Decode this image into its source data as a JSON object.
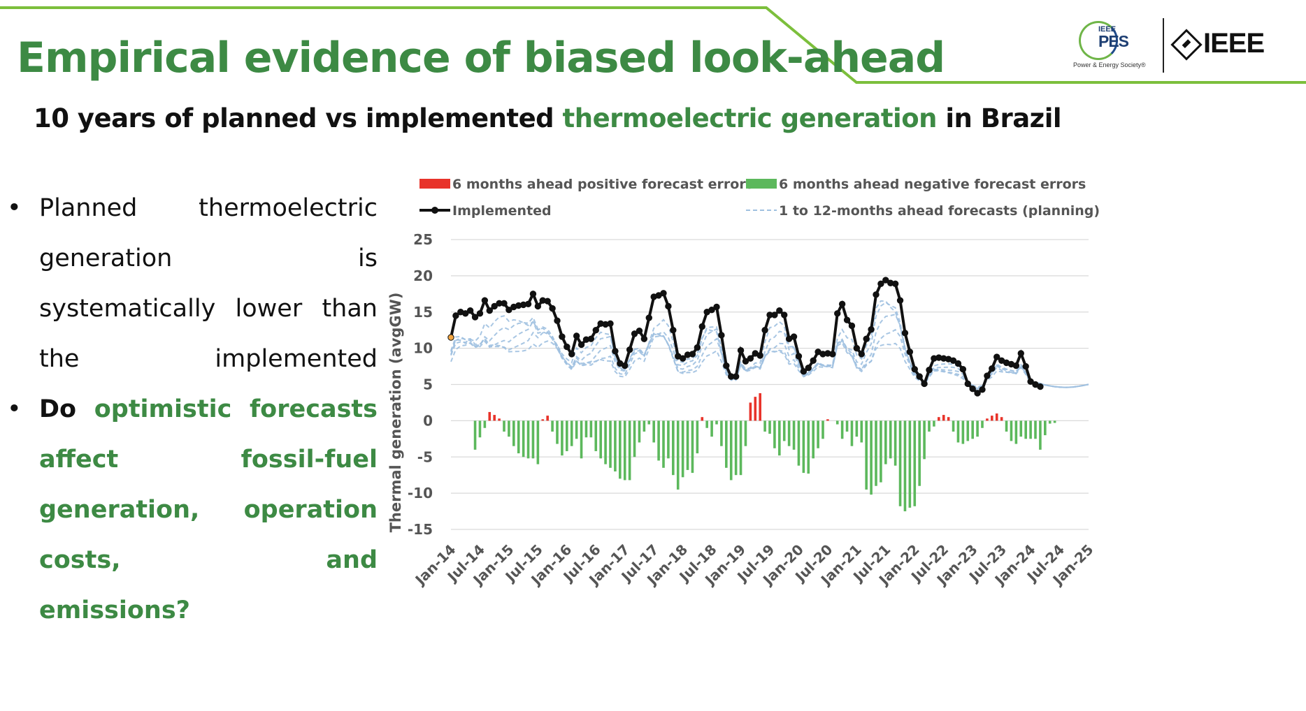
{
  "header": {
    "title": "Empirical evidence of biased look-ahead",
    "subtitle_part1": "10 years of planned vs implemented ",
    "subtitle_highlight": "thermoelectric generation",
    "subtitle_part2": " in Brazil"
  },
  "logos": {
    "pes_small": "IEEE",
    "pes_big": "PES",
    "pes_caption": "Power & Energy Society®",
    "ieee": "IEEE"
  },
  "bullets": {
    "b1": "Planned thermoelectric generation is systematically lower than the implemented",
    "b2_lead": "Do",
    "b2_green_main": " optimistic forecasts affect fossil-fuel generation, operation costs, and",
    "b2_green_last": "emissions?"
  },
  "colors": {
    "accent_green": "#3d8a44",
    "positive_error": "#e8332a",
    "negative_error": "#5cb85c",
    "implemented": "#111111",
    "forecast": "#9fc0e0"
  },
  "chart_data": {
    "type": "bar",
    "ylabel": "Thermal generation (avgGW)",
    "ylim": [
      -15,
      25
    ],
    "yticks": [
      25,
      20,
      15,
      10,
      5,
      0,
      -5,
      -10,
      -15
    ],
    "x_tick_labels": [
      "Jan-14",
      "Jul-14",
      "Jan-15",
      "Jul-15",
      "Jan-16",
      "Jul-16",
      "Jan-17",
      "Jul-17",
      "Jan-18",
      "Jul-18",
      "Jan-19",
      "Jul-19",
      "Jan-20",
      "Jul-20",
      "Jan-21",
      "Jul-21",
      "Jan-22",
      "Jul-22",
      "Jan-23",
      "Jul-23",
      "Jan-24",
      "Jul-24",
      "Jan-25"
    ],
    "x_start": "Jan-14",
    "n_months": 133,
    "legend": [
      {
        "label": "6 months ahead positive forecast errors",
        "kind": "bar-red"
      },
      {
        "label": "6 months ahead negative forecast errors",
        "kind": "bar-green"
      },
      {
        "label": "Implemented",
        "kind": "line-marker"
      },
      {
        "label": "1 to 12-months ahead forecasts (planning)",
        "kind": "line-dashed"
      }
    ],
    "implemented": [
      11.5,
      14.5,
      15,
      14.8,
      15.2,
      14.3,
      14.8,
      16.6,
      15.2,
      15.8,
      16.2,
      16.2,
      15.3,
      15.7,
      15.9,
      16,
      16.1,
      17.5,
      15.8,
      16.6,
      16.5,
      15.5,
      13.8,
      11.6,
      10.2,
      9.2,
      11.7,
      10.5,
      11.2,
      11.3,
      12.5,
      13.4,
      13.3,
      13.4,
      9.6,
      7.9,
      7.6,
      9.8,
      12,
      12.4,
      11.3,
      14.2,
      17.1,
      17.3,
      17.6,
      15.8,
      12.5,
      8.9,
      8.6,
      9.1,
      9.2,
      10.1,
      13,
      15,
      15.3,
      15.7,
      11.8,
      7.6,
      6.1,
      6.1,
      9.7,
      8.2,
      8.6,
      9.3,
      9,
      12.5,
      14.6,
      14.6,
      15.2,
      14.6,
      11.3,
      11.6,
      8.9,
      6.8,
      7.3,
      8.3,
      9.5,
      9.2,
      9.3,
      9.2,
      14.8,
      16.1,
      13.9,
      13.1,
      10,
      9.2,
      11.3,
      12.6,
      17.4,
      18.9,
      19.4,
      19,
      18.9,
      16.6,
      12.1,
      9.5,
      7.1,
      6.1,
      5.1,
      7,
      8.6,
      8.7,
      8.6,
      8.5,
      8.3,
      7.9,
      7.1,
      5.1,
      4.4,
      3.8,
      4.3,
      6.2,
      7.2,
      8.8,
      8.3,
      8,
      7.8,
      7.6,
      9.3,
      7.5,
      5.4,
      5,
      4.7
    ],
    "errors": {
      "start": "Jan-14",
      "values": [
        0,
        0,
        0,
        0,
        0,
        -4,
        -2.3,
        -1,
        1.2,
        0.8,
        0.3,
        -1.5,
        -2.2,
        -3.5,
        -4.5,
        -5,
        -5.2,
        -5.2,
        -6,
        0.2,
        0.7,
        -1.5,
        -3.2,
        -4.8,
        -4.2,
        -3.5,
        -2.5,
        -5.2,
        -2.3,
        -2.3,
        -4.2,
        -5.2,
        -6,
        -6.5,
        -7,
        -8,
        -8.2,
        -8.2,
        -5,
        -3,
        -1.5,
        -0.5,
        -3,
        -5.5,
        -6.5,
        -5.2,
        -7.5,
        -9.5,
        -7.8,
        -6.8,
        -7.2,
        -4.5,
        0.5,
        -1,
        -2.2,
        -0.5,
        -3.5,
        -6.5,
        -8.2,
        -7.5,
        -7.5,
        -3.5,
        2.5,
        3.3,
        3.8,
        -1.5,
        -1.8,
        -3.8,
        -4.8,
        -2.8,
        -3.5,
        -4,
        -6.2,
        -7.2,
        -7.3,
        -5.2,
        -3.8,
        -2.5,
        0.2,
        0,
        -0.5,
        -2.5,
        -1.5,
        -3.5,
        -2.2,
        -3,
        -9.5,
        -10.2,
        -9,
        -8.5,
        -6,
        -5.2,
        -6.2,
        -11.8,
        -12.5,
        -12,
        -11.8,
        -9,
        -5.3,
        -1.5,
        -0.8,
        0.5,
        0.8,
        0.5,
        -1.5,
        -3,
        -3.2,
        -2.8,
        -2.5,
        -2.2,
        -1,
        0.3,
        0.7,
        1,
        0.5,
        -1.5,
        -2.8,
        -3.2,
        -2.2,
        -2.5,
        -2.5,
        -2.5,
        -4,
        -2,
        -0.4,
        -0.3
      ]
    }
  }
}
